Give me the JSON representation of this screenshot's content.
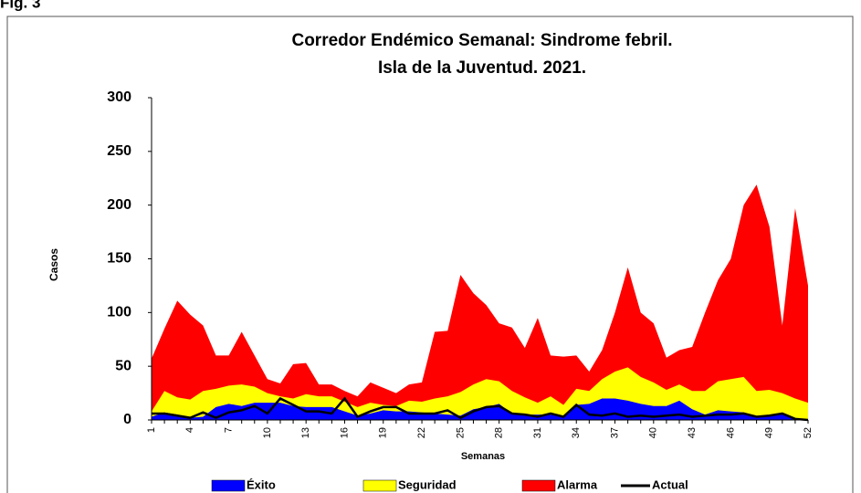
{
  "figure_label": "Fig. 3",
  "chart_data": {
    "type": "area",
    "title": [
      "Corredor Endémico Semanal: Sindrome febril.",
      "Isla de la Juventud. 2021."
    ],
    "x_label": "Semanas",
    "y_label": "Casos",
    "categories": [
      "1",
      null,
      null,
      "4",
      null,
      null,
      "7",
      null,
      null,
      "10",
      null,
      null,
      "13",
      null,
      null,
      "16",
      null,
      null,
      "19",
      null,
      null,
      "22",
      null,
      null,
      "25",
      null,
      null,
      "28",
      null,
      null,
      "31",
      null,
      null,
      "34",
      null,
      null,
      "37",
      null,
      null,
      "40",
      null,
      null,
      "43",
      null,
      null,
      "46",
      null,
      null,
      "49",
      null,
      null,
      "52"
    ],
    "ylim": [
      0,
      300
    ],
    "yticks": [
      0,
      50,
      100,
      150,
      200,
      250,
      300
    ],
    "legend": "bottom",
    "series": [
      {
        "name": "Éxito",
        "color": "#0000ff",
        "kind": "area",
        "values": [
          3,
          7,
          5,
          2,
          3,
          12,
          15,
          13,
          16,
          16,
          16,
          13,
          12,
          12,
          12,
          8,
          4,
          6,
          9,
          8,
          8,
          7,
          6,
          5,
          4,
          10,
          12,
          15,
          6,
          5,
          5,
          5,
          3,
          14,
          15,
          20,
          20,
          18,
          15,
          13,
          13,
          18,
          10,
          5,
          9,
          8,
          7,
          3,
          4,
          6,
          1,
          0
        ]
      },
      {
        "name": "Seguridad",
        "color": "#ffff00",
        "kind": "area",
        "values": [
          8,
          27,
          21,
          19,
          27,
          29,
          32,
          33,
          31,
          25,
          22,
          20,
          24,
          22,
          22,
          17,
          12,
          16,
          14,
          13,
          18,
          17,
          20,
          22,
          26,
          33,
          38,
          36,
          27,
          21,
          16,
          22,
          14,
          29,
          27,
          38,
          45,
          49,
          40,
          35,
          28,
          33,
          27,
          27,
          36,
          38,
          40,
          27,
          28,
          25,
          20,
          16
        ]
      },
      {
        "name": "Alarma",
        "color": "#ff0000",
        "kind": "area",
        "values": [
          57,
          85,
          111,
          98,
          88,
          60,
          60,
          82,
          60,
          38,
          34,
          52,
          53,
          33,
          33,
          27,
          22,
          35,
          30,
          25,
          33,
          35,
          82,
          83,
          135,
          118,
          107,
          90,
          86,
          67,
          95,
          60,
          59,
          60,
          45,
          65,
          100,
          142,
          100,
          90,
          58,
          65,
          68,
          100,
          130,
          150,
          200,
          219,
          180,
          88,
          197,
          125
        ]
      },
      {
        "name": "Actual",
        "color": "#000000",
        "kind": "line",
        "values": [
          6,
          6,
          4,
          2,
          7,
          2,
          7,
          9,
          13,
          6,
          20,
          14,
          8,
          8,
          6,
          20,
          3,
          8,
          12,
          12,
          6,
          6,
          6,
          9,
          2,
          8,
          12,
          13,
          6,
          5,
          3,
          6,
          3,
          14,
          5,
          4,
          6,
          3,
          4,
          3,
          4,
          5,
          3,
          4,
          5,
          5,
          6,
          3,
          4,
          6,
          1,
          0
        ]
      }
    ]
  }
}
